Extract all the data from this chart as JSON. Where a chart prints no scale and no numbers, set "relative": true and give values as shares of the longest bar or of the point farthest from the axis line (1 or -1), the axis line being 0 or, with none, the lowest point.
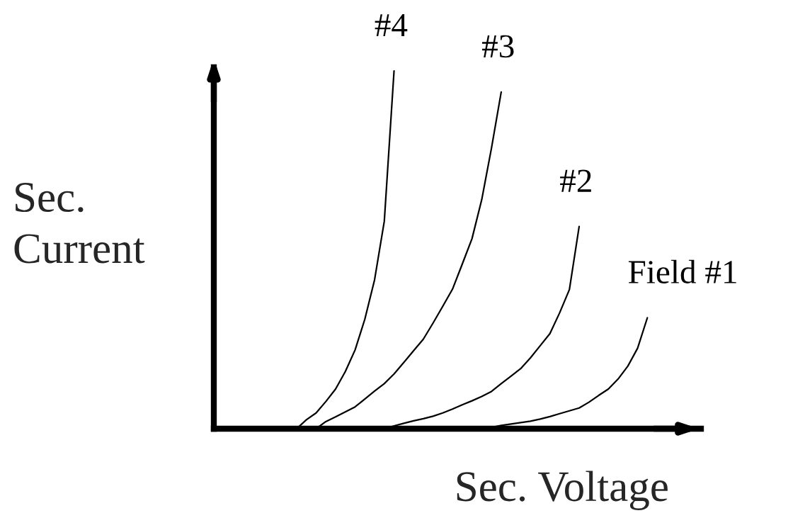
{
  "chart_data": {
    "type": "line",
    "relative": true,
    "xlabel": "Sec. Voltage",
    "ylabel": "Sec.\nCurrent",
    "legend": false,
    "marker": "none",
    "line_style": "solid",
    "categories": [
      null,
      null,
      null,
      null,
      null,
      null,
      null,
      null,
      null,
      null,
      null,
      null,
      null,
      null,
      null,
      null,
      null,
      null,
      null,
      null,
      null,
      null,
      null,
      null,
      null,
      null,
      null,
      null,
      null,
      null,
      null,
      null,
      null,
      null,
      null,
      null,
      null,
      null,
      null,
      null,
      null,
      null,
      null,
      null,
      null
    ],
    "series": [
      {
        "name": "Field #1",
        "color": "#000000",
        "values": [
          null,
          null,
          null,
          null,
          null,
          null,
          null,
          null,
          null,
          null,
          null,
          null,
          null,
          null,
          null,
          null,
          null,
          null,
          null,
          null,
          null,
          null,
          null,
          null,
          null,
          null,
          null,
          0,
          0.004,
          0.009,
          0.013,
          0.017,
          0.021,
          0.027,
          0.034,
          0.042,
          0.05,
          0.058,
          0.074,
          0.093,
          0.111,
          0.139,
          0.175,
          0.225,
          0.31
        ]
      },
      {
        "name": "#2",
        "color": "#000000",
        "values": [
          null,
          null,
          null,
          null,
          null,
          null,
          null,
          null,
          null,
          null,
          null,
          null,
          null,
          null,
          null,
          null,
          null,
          0,
          0.008,
          0.015,
          0.022,
          0.028,
          0.035,
          0.044,
          0.055,
          0.067,
          0.078,
          0.09,
          0.104,
          0.126,
          0.147,
          0.168,
          0.198,
          0.232,
          0.266,
          0.324,
          0.389,
          0.565,
          null,
          null,
          null,
          null,
          null,
          null,
          null
        ]
      },
      {
        "name": "#3",
        "color": "#000000",
        "values": [
          null,
          null,
          null,
          null,
          null,
          null,
          null,
          null,
          null,
          null,
          0,
          0.02,
          0.033,
          0.047,
          0.061,
          0.083,
          0.105,
          0.126,
          0.153,
          0.185,
          0.218,
          0.25,
          0.295,
          0.342,
          0.39,
          0.46,
          0.531,
          0.64,
          0.784,
          0.941,
          null,
          null,
          null,
          null,
          null,
          null,
          null,
          null,
          null,
          null,
          null,
          null,
          null,
          null,
          null
        ]
      },
      {
        "name": "#4",
        "color": "#000000",
        "values": [
          null,
          null,
          null,
          null,
          null,
          null,
          null,
          null,
          0,
          0.025,
          0.044,
          0.076,
          0.111,
          0.16,
          0.22,
          0.306,
          0.416,
          0.58,
          1,
          null,
          null,
          null,
          null,
          null,
          null,
          null,
          null,
          null,
          null,
          null,
          null,
          null,
          null,
          null,
          null,
          null,
          null,
          null,
          null,
          null,
          null,
          null,
          null,
          null,
          null
        ]
      }
    ]
  }
}
